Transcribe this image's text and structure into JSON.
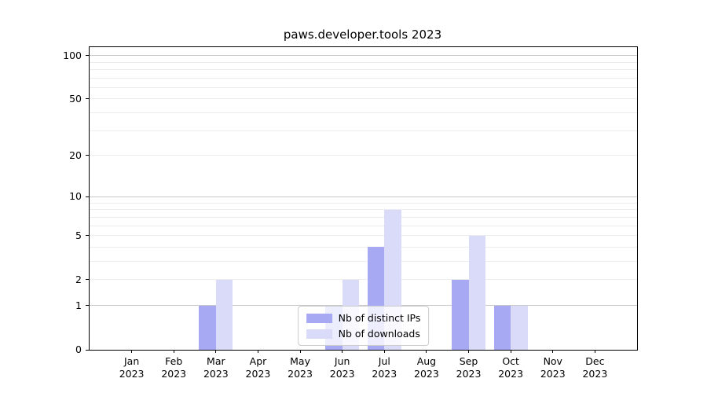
{
  "chart_data": {
    "type": "bar",
    "title": "paws.developer.tools 2023",
    "x": {
      "months": [
        "Jan",
        "Feb",
        "Mar",
        "Apr",
        "May",
        "Jun",
        "Jul",
        "Aug",
        "Sep",
        "Oct",
        "Nov",
        "Dec"
      ],
      "year": "2023"
    },
    "series": [
      {
        "name": "Nb of distinct IPs",
        "color": "#a7a9f3",
        "values": [
          0,
          0,
          1,
          0,
          0,
          1,
          4,
          0,
          2,
          1,
          0,
          0
        ]
      },
      {
        "name": "Nb of downloads",
        "color": "#d9dbf8",
        "values": [
          0,
          0,
          2,
          0,
          0,
          2,
          8,
          0,
          5,
          1,
          0,
          0
        ]
      }
    ],
    "yscale": "log1p",
    "ylim": [
      0,
      114
    ],
    "y_ticks": [
      "0",
      "1",
      "2",
      "5",
      "10",
      "20",
      "50",
      "100"
    ],
    "y_major_gridlines": [
      1,
      10,
      100
    ],
    "y_minor_gridlines": [
      2,
      3,
      4,
      5,
      6,
      7,
      8,
      9,
      20,
      30,
      40,
      50,
      60,
      70,
      80,
      90
    ],
    "legend": {
      "location": "lower center",
      "entries": [
        "Nb of distinct IPs",
        "Nb of downloads"
      ]
    },
    "colors": {
      "major_grid": "#c9c9c9",
      "minor_grid": "#ededed",
      "axis": "#000000",
      "background": "#ffffff"
    }
  }
}
